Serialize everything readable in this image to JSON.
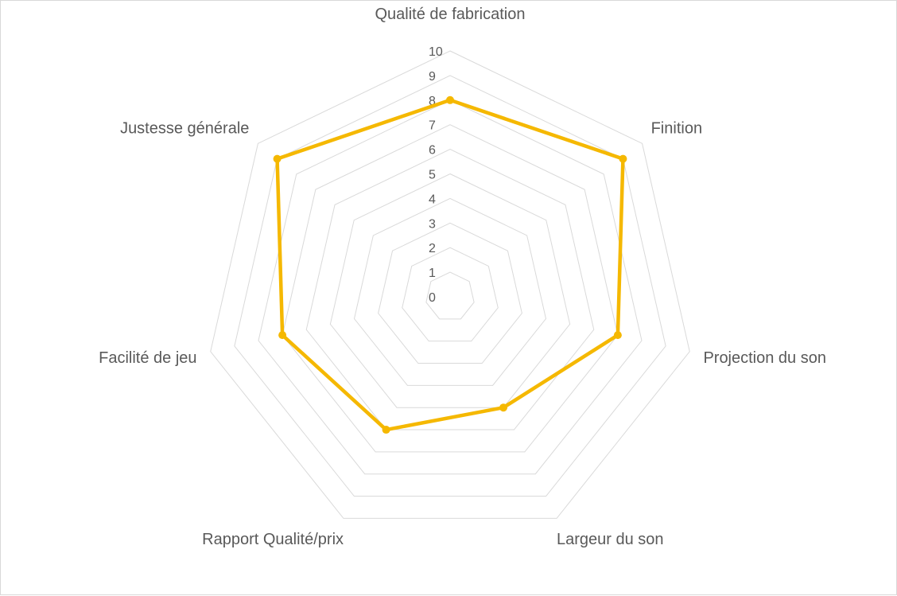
{
  "chart_data": {
    "type": "radar",
    "categories": [
      "Qualité de fabrication",
      "Finition",
      "Projection du son",
      "Largeur du son",
      "Rapport Qualité/prix",
      "Facilité de jeu",
      "Justesse générale"
    ],
    "series": [
      {
        "values": [
          8,
          9,
          7,
          5,
          6,
          7,
          9
        ]
      }
    ],
    "ticks": [
      "0",
      "1",
      "2",
      "3",
      "4",
      "5",
      "6",
      "7",
      "8",
      "9",
      "10"
    ],
    "rlim": [
      0,
      10
    ],
    "grid": true,
    "legend": "none",
    "colors": {
      "series": "#f5b800",
      "grid": "#d9d9d9",
      "text": "#595959",
      "border": "#d9d9d9"
    }
  }
}
